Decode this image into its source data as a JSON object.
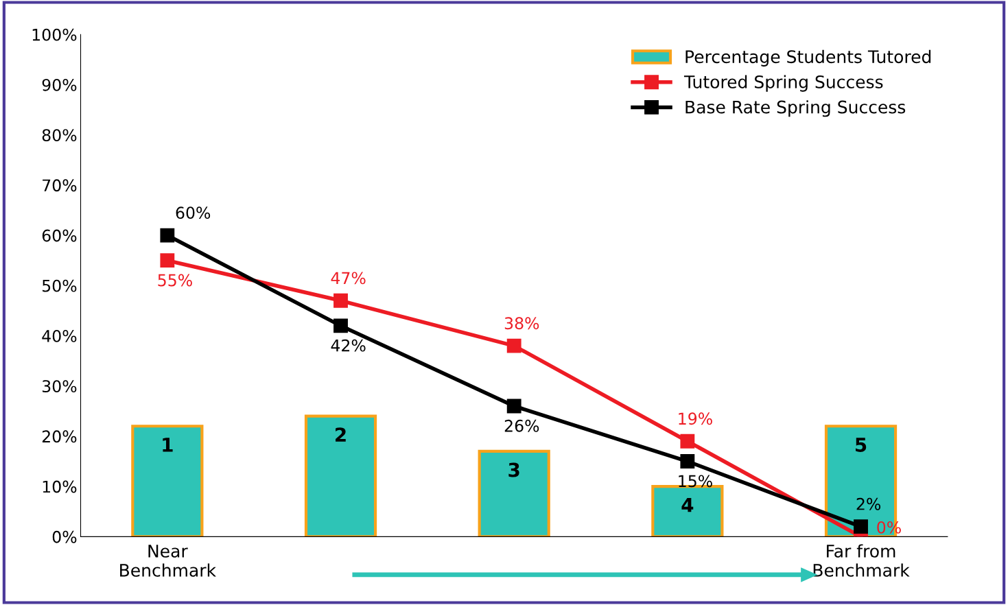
{
  "chart_data": {
    "type": "bar",
    "categories": [
      "Near\nBenchmark",
      null,
      null,
      null,
      "Far from\nBenchmark"
    ],
    "ylim": [
      0,
      100
    ],
    "yticks": [
      {
        "value": 0,
        "label": "0%"
      },
      {
        "value": 10,
        "label": "10%"
      },
      {
        "value": 20,
        "label": "20%"
      },
      {
        "value": 30,
        "label": "30%"
      },
      {
        "value": 40,
        "label": "40%"
      },
      {
        "value": 50,
        "label": "50%"
      },
      {
        "value": 60,
        "label": "60%"
      },
      {
        "value": 70,
        "label": "70%"
      },
      {
        "value": 80,
        "label": "80%"
      },
      {
        "value": 90,
        "label": "90%"
      },
      {
        "value": 100,
        "label": "100%"
      }
    ],
    "annotations": [
      "1",
      "2",
      "3",
      "4",
      "5"
    ],
    "grid": false,
    "legend": "top right",
    "marker": "square",
    "series": [
      {
        "name": "Percentage Students Tutored",
        "color": "#2ec4b6",
        "values": [
          22,
          24,
          17,
          10,
          22
        ]
      },
      {
        "name": "Tutored Spring Success",
        "type": "line",
        "color": "#ed1c24",
        "values": [
          55,
          47,
          38,
          19,
          0
        ],
        "value_labels": [
          "55%",
          "47%",
          "38%",
          "19%",
          "0%"
        ]
      },
      {
        "name": "Base Rate Spring Success",
        "type": "line",
        "color": "#000000",
        "values": [
          60,
          42,
          26,
          15,
          2
        ],
        "value_labels": [
          "60%",
          "42%",
          "26%",
          "15%",
          "2%"
        ]
      }
    ]
  }
}
